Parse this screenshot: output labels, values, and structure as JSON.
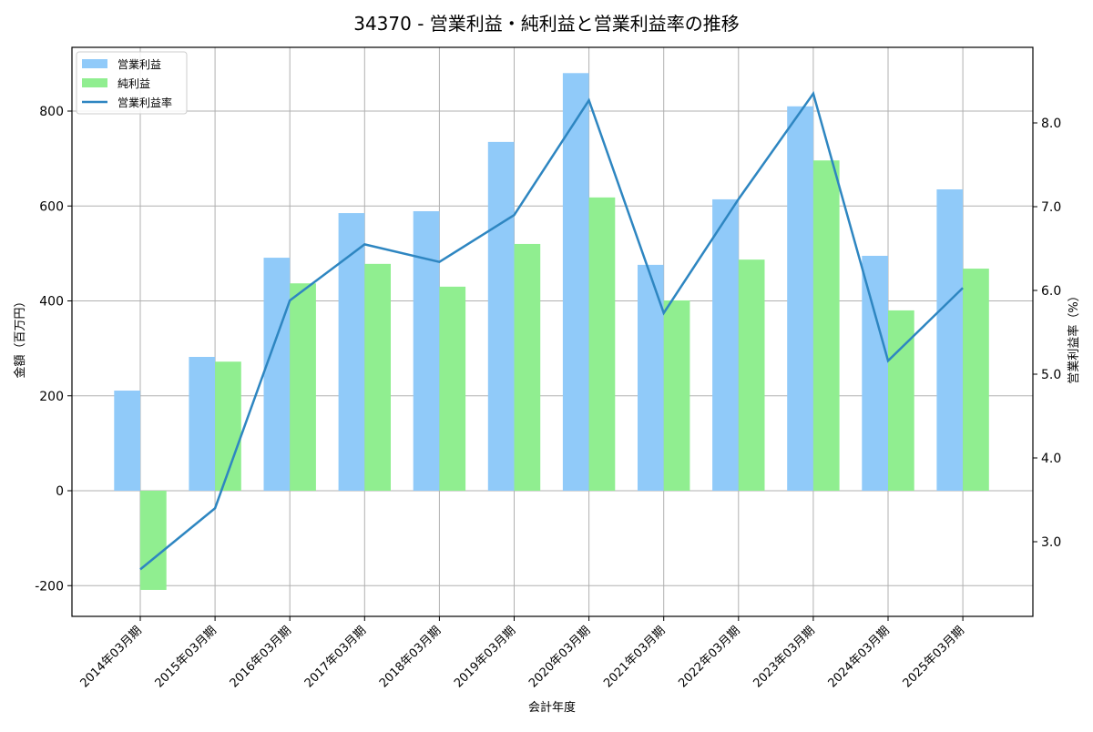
{
  "chart_data": {
    "type": "bar",
    "title": "34370 - 営業利益・純利益と営業利益率の推移",
    "xlabel": "会計年度",
    "ylabel": "金額（百万円）",
    "y2label": "営業利益率（%）",
    "categories": [
      "2014年03月期",
      "2015年03月期",
      "2016年03月期",
      "2017年03月期",
      "2018年03月期",
      "2019年03月期",
      "2020年03月期",
      "2021年03月期",
      "2022年03月期",
      "2023年03月期",
      "2024年03月期",
      "2025年03月期"
    ],
    "series": [
      {
        "name": "営業利益",
        "type": "bar",
        "axis": "left",
        "color": "#90caf9",
        "values": [
          211,
          282,
          491,
          585,
          589,
          735,
          880,
          476,
          614,
          810,
          495,
          635
        ]
      },
      {
        "name": "純利益",
        "type": "bar",
        "axis": "left",
        "color": "#90ee90",
        "values": [
          -209,
          272,
          437,
          478,
          430,
          520,
          618,
          401,
          487,
          696,
          380,
          468
        ]
      },
      {
        "name": "営業利益率",
        "type": "line",
        "axis": "right",
        "color": "#2e86c1",
        "values": [
          2.67,
          3.4,
          5.88,
          6.55,
          6.34,
          6.9,
          8.27,
          5.73,
          7.09,
          8.35,
          5.16,
          6.03
        ]
      }
    ],
    "ylim": [
      -265,
      935
    ],
    "y2lim": [
      2.35,
      8.95
    ],
    "yticks": [
      -200,
      0,
      200,
      400,
      600,
      800
    ],
    "y2ticks": [
      3.0,
      4.0,
      5.0,
      6.0,
      7.0,
      8.0
    ],
    "grid": true,
    "legend_position": "upper left"
  }
}
